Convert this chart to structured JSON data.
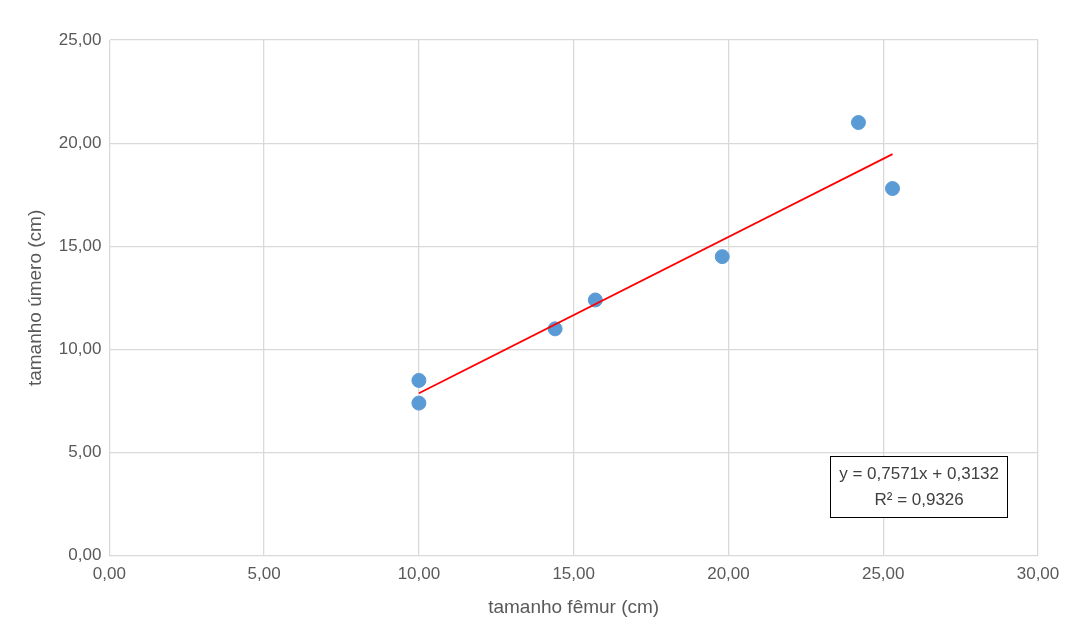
{
  "chart_data": {
    "type": "scatter",
    "xlabel": "tamanho fêmur (cm)",
    "ylabel": "tamanho úmero (cm)",
    "series": [
      {
        "color": "#5b9bd5",
        "x": [
          10.0,
          10.0,
          14.4,
          15.7,
          19.8,
          24.2,
          25.3
        ],
        "values": [
          7.4,
          8.5,
          11.0,
          12.4,
          14.5,
          21.0,
          17.8
        ]
      },
      {
        "type": "line",
        "color": "#ff0000",
        "x": [
          10.0,
          25.3
        ],
        "values": [
          7.88,
          19.47
        ],
        "marker": "none"
      }
    ],
    "xlim": [
      0,
      30
    ],
    "xticks": [
      {
        "value": 0,
        "label": "0,00"
      },
      {
        "value": 5,
        "label": "5,00"
      },
      {
        "value": 10,
        "label": "10,00"
      },
      {
        "value": 15,
        "label": "15,00"
      },
      {
        "value": 20,
        "label": "20,00"
      },
      {
        "value": 25,
        "label": "25,00"
      },
      {
        "value": 30,
        "label": "30,00"
      }
    ],
    "ylim": [
      0,
      25
    ],
    "yticks": [
      {
        "value": 0,
        "label": "0,00"
      },
      {
        "value": 5,
        "label": "5,00"
      },
      {
        "value": 10,
        "label": "10,00"
      },
      {
        "value": 15,
        "label": "15,00"
      },
      {
        "value": 20,
        "label": "20,00"
      },
      {
        "value": 25,
        "label": "25,00"
      }
    ],
    "annotations": [
      "y = 0,7571x + 0,3132",
      "R² = 0,9326"
    ],
    "grid": true,
    "legend": false,
    "marker": "circle"
  }
}
